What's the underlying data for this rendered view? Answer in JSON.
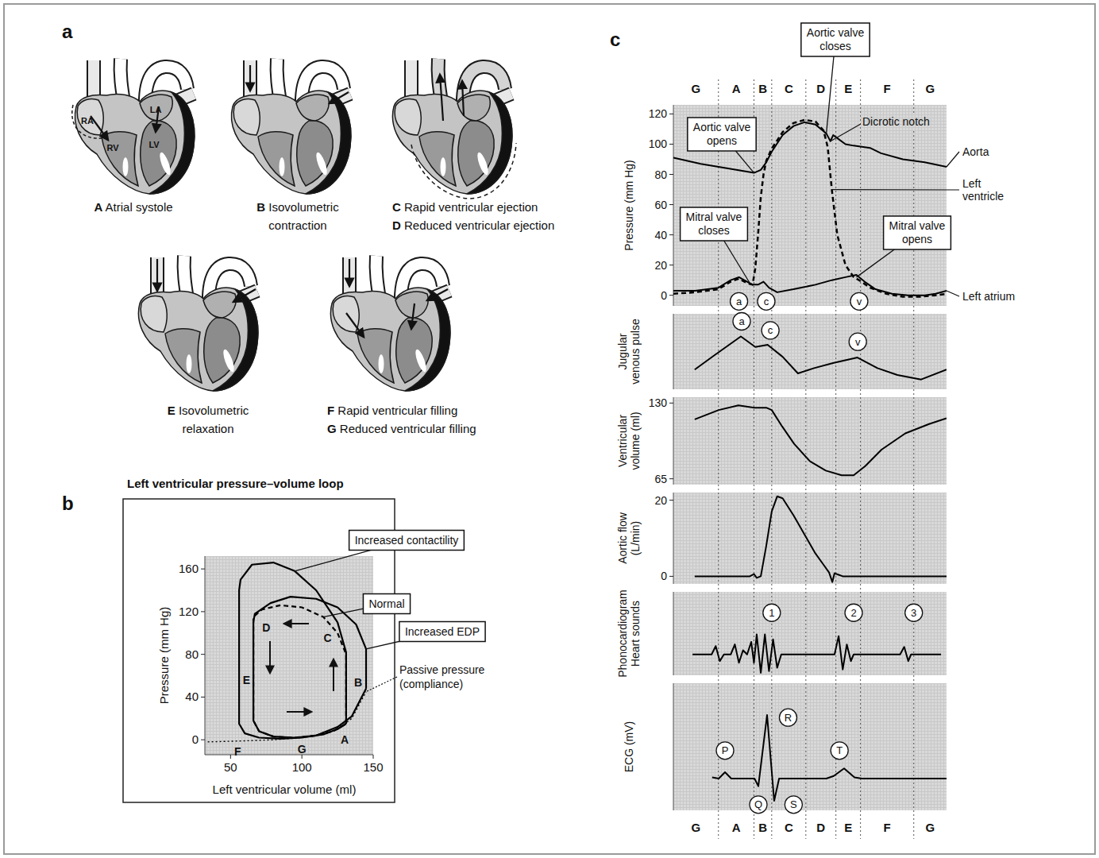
{
  "panel_labels": [
    "a",
    "b",
    "c"
  ],
  "panel_a": {
    "chamber_labels": [
      "RA",
      "LA",
      "RV",
      "LV"
    ],
    "hearts": [
      {
        "captions": [
          {
            "letter": "A",
            "text": "Atrial systole"
          }
        ]
      },
      {
        "captions": [
          {
            "letter": "B",
            "text": "Isovolumetric contraction"
          }
        ]
      },
      {
        "captions": [
          {
            "letter": "C",
            "text": "Rapid ventricular ejection"
          },
          {
            "letter": "D",
            "text": "Reduced ventricular ejection"
          }
        ]
      },
      {
        "captions": [
          {
            "letter": "E",
            "text": "Isovolumetric relaxation"
          }
        ]
      },
      {
        "captions": [
          {
            "letter": "F",
            "text": "Rapid ventricular filling"
          },
          {
            "letter": "G",
            "text": "Reduced ventricular filling"
          }
        ]
      }
    ]
  },
  "cycle_phases": {
    "labels": [
      "G",
      "A",
      "B",
      "C",
      "D",
      "E",
      "F",
      "G"
    ],
    "boundaries": [
      16.5,
      29.5,
      36,
      48.5,
      59.5,
      68.5,
      88
    ]
  },
  "chart_data": [
    {
      "type": "line",
      "title": "Left ventricular pressure–volume loop",
      "x_label": "Left ventricular volume (ml)",
      "y_label": "Pressure (mm Hg)",
      "xlim": [
        32,
        150
      ],
      "ylim": [
        -14,
        172
      ],
      "xticks": [
        50,
        100,
        150
      ],
      "yticks": [
        0,
        40,
        80,
        120,
        160
      ],
      "series": [
        {
          "name": "Normal",
          "color": "#000000",
          "line_style": "dashed",
          "x": [
            131,
            131,
            125,
            115,
            100,
            85,
            72,
            66,
            66,
            66,
            70,
            80,
            95,
            110,
            122,
            131
          ],
          "values": [
            15,
            80,
            100,
            115,
            124,
            126,
            122,
            115,
            60,
            18,
            8,
            3,
            2,
            4,
            8,
            15
          ]
        },
        {
          "name": "Increased contactility",
          "color": "#000000",
          "line_style": "solid",
          "x": [
            131,
            131,
            125,
            110,
            95,
            80,
            65,
            57,
            56,
            56,
            56,
            60,
            70,
            85,
            100,
            115,
            125,
            131
          ],
          "values": [
            15,
            82,
            110,
            140,
            158,
            166,
            164,
            150,
            140,
            60,
            15,
            6,
            2,
            1,
            2,
            5,
            10,
            15
          ]
        },
        {
          "name": "Increased EDP",
          "color": "#000000",
          "line_style": "solid",
          "x": [
            145,
            145,
            138,
            125,
            110,
            92,
            78,
            67,
            66,
            66,
            66,
            70,
            80,
            95,
            110,
            125,
            135,
            145
          ],
          "values": [
            48,
            85,
            108,
            124,
            132,
            134,
            128,
            118,
            110,
            60,
            18,
            8,
            3,
            2,
            4,
            12,
            22,
            48
          ]
        },
        {
          "name": "Passive pressure (compliance)",
          "color": "#000000",
          "line_style": "dotted",
          "x": [
            34,
            60,
            80,
            100,
            115,
            125,
            135,
            145
          ],
          "values": [
            -2,
            -1,
            0,
            2,
            5,
            10,
            20,
            45
          ]
        }
      ],
      "point_labels": [
        {
          "label": "A",
          "x": 130,
          "y": 0
        },
        {
          "label": "B",
          "x": 139.5,
          "y": 54
        },
        {
          "label": "C",
          "x": 118,
          "y": 95
        },
        {
          "label": "D",
          "x": 75,
          "y": 105
        },
        {
          "label": "E",
          "x": 61.2,
          "y": 56
        },
        {
          "label": "F",
          "x": 55,
          "y": -11
        },
        {
          "label": "G",
          "x": 100,
          "y": -9
        }
      ]
    },
    {
      "type": "line",
      "y_label": "Pressure (mm Hg)",
      "xlim": [
        0,
        100
      ],
      "ylim": [
        -7,
        126
      ],
      "yticks": [
        0,
        20,
        40,
        60,
        80,
        100,
        120
      ],
      "tick_labels": "y",
      "series": [
        {
          "name": "Aorta",
          "color": "#000000",
          "line_style": "solid",
          "x": [
            0,
            10,
            20,
            29.5,
            32,
            34,
            36,
            40,
            44,
            48,
            52,
            55,
            56,
            57.5,
            58.5,
            60,
            63,
            66,
            70,
            72,
            76,
            84,
            92,
            100
          ],
          "values": [
            91,
            87,
            84,
            81,
            83,
            88,
            95,
            106,
            112,
            114.5,
            113,
            108.5,
            107,
            102,
            106,
            104,
            100,
            99,
            98,
            97.5,
            94,
            90,
            88,
            85
          ]
        },
        {
          "name": "Left ventricle",
          "color": "#000000",
          "line_style": "dashed",
          "x": [
            0,
            8,
            16.5,
            21,
            24,
            27,
            29,
            30,
            31,
            32,
            33,
            34,
            36,
            40,
            44,
            48,
            52,
            55,
            56.5,
            58,
            60,
            63,
            66,
            68,
            72,
            78,
            84,
            90,
            96,
            100
          ],
          "values": [
            1,
            2,
            4,
            9,
            11,
            8,
            7,
            18,
            40,
            65,
            80,
            89,
            97,
            108,
            114,
            116,
            115,
            109,
            98,
            70,
            40,
            20,
            12,
            10,
            5,
            1,
            -1,
            -1,
            0,
            1
          ]
        },
        {
          "name": "Left atrium",
          "color": "#000000",
          "line_style": "solid",
          "x": [
            0,
            8,
            16.5,
            21,
            24,
            27,
            29,
            31,
            33,
            35,
            38,
            44,
            52,
            58,
            63,
            67,
            70,
            74,
            80,
            86,
            92,
            96,
            100
          ],
          "values": [
            3,
            3,
            5,
            10,
            12,
            9,
            7,
            7,
            9,
            5,
            2,
            4,
            7,
            10,
            12,
            13.5,
            9,
            4,
            1,
            0,
            0,
            1,
            3
          ]
        }
      ],
      "annotations": [
        {
          "text": "Aortic valve opens",
          "x": 29.5,
          "y": 81
        },
        {
          "text": "Mitral valve closes",
          "x": 28,
          "y": 8
        },
        {
          "text": "Aortic valve closes",
          "x": 56,
          "y": 107
        },
        {
          "text": "Dicrotic notch",
          "x": 57.5,
          "y": 102
        },
        {
          "text": "Mitral valve opens",
          "x": 67,
          "y": 12
        }
      ],
      "wave_labels": [
        {
          "label": "a",
          "x": 24,
          "y": -4
        },
        {
          "label": "c",
          "x": 34,
          "y": -4
        },
        {
          "label": "v",
          "x": 68,
          "y": -4
        }
      ]
    },
    {
      "type": "line",
      "y_label": "Jugular venous pulse",
      "xlim": [
        0,
        100
      ],
      "ylim": [
        0,
        10
      ],
      "tick_labels": false,
      "series": [
        {
          "color": "#000000",
          "line_style": "solid",
          "x": [
            7.8,
            15,
            24.7,
            30,
            34.5,
            40,
            45.6,
            51.5,
            58.7,
            67.4,
            74.7,
            82,
            90.7,
            100
          ],
          "values": [
            2.6,
            4.5,
            7,
            5.6,
            5.9,
            4.3,
            2.1,
            2.8,
            3.5,
            4.2,
            2.8,
            1.9,
            1.3,
            2.6
          ]
        }
      ],
      "wave_labels": [
        {
          "label": "a",
          "x": 25,
          "y": 9
        },
        {
          "label": "c",
          "x": 35.5,
          "y": 7.8
        },
        {
          "label": "v",
          "x": 67.5,
          "y": 6.3
        }
      ]
    },
    {
      "type": "line",
      "y_label": "Ventricular volume (ml)",
      "xlim": [
        0,
        100
      ],
      "ylim": [
        60,
        135
      ],
      "yticks": [
        65,
        130
      ],
      "tick_labels": "y",
      "series": [
        {
          "color": "#000000",
          "line_style": "solid",
          "x": [
            7.8,
            16.6,
            23.8,
            29.7,
            34,
            36,
            39.8,
            44.2,
            50,
            55.8,
            61.6,
            66,
            70.3,
            76.2,
            84.9,
            93.6,
            100
          ],
          "values": [
            116,
            124,
            128,
            126,
            126,
            124,
            110,
            95,
            80,
            72,
            68,
            68,
            76,
            90,
            104,
            112,
            117
          ]
        }
      ]
    },
    {
      "type": "line",
      "y_label": "Aortic flow (L/min)",
      "xlim": [
        0,
        100
      ],
      "ylim": [
        -2,
        22
      ],
      "yticks": [
        0,
        20
      ],
      "tick_labels": "y",
      "series": [
        {
          "color": "#000000",
          "line_style": "solid",
          "x": [
            7.8,
            28,
            29.5,
            30.5,
            32,
            34,
            36,
            38,
            40,
            44,
            48,
            52,
            55,
            57,
            58.2,
            59,
            60.5,
            62,
            100
          ],
          "values": [
            0,
            0,
            0.6,
            -0.4,
            0,
            8,
            17,
            21,
            20.5,
            16,
            11,
            6,
            3,
            1,
            -1.5,
            0.8,
            0.4,
            0,
            0
          ]
        }
      ]
    },
    {
      "type": "line",
      "y_label": "Phonocardiogram Heart sounds",
      "xlim": [
        0,
        100
      ],
      "ylim": [
        -2.5,
        7.5
      ],
      "tick_labels": false,
      "series": [
        {
          "color": "#000000",
          "line_style": "solid",
          "x": [
            7,
            14,
            15.5,
            17,
            18.5,
            21,
            22.5,
            24,
            25.5,
            27,
            28.5,
            29.5,
            30.5,
            32,
            33.5,
            35,
            36.5,
            38,
            39.5,
            59,
            60.5,
            62,
            63.5,
            65,
            66,
            83,
            84.5,
            86,
            87,
            98
          ],
          "values": [
            0,
            0,
            1,
            -0.8,
            0,
            0,
            1.2,
            -1,
            0.5,
            0,
            1.5,
            -1,
            2.4,
            -2.2,
            2.4,
            -2,
            1.8,
            -1.6,
            0,
            0,
            2.2,
            -1.8,
            1.2,
            -0.8,
            0,
            0,
            0.9,
            -0.8,
            0,
            0
          ]
        }
      ],
      "wave_labels": [
        {
          "label": "1",
          "x": 36,
          "y": 5
        },
        {
          "label": "2",
          "x": 66,
          "y": 5
        },
        {
          "label": "3",
          "x": 88,
          "y": 5
        }
      ]
    },
    {
      "type": "line",
      "y_label": "ECG (mV)",
      "xlim": [
        0,
        100
      ],
      "ylim": [
        -0.5,
        1.5
      ],
      "tick_labels": false,
      "series": [
        {
          "color": "#000000",
          "line_style": "solid",
          "x": [
            14.2,
            16.6,
            18.9,
            21.2,
            29.7,
            31.1,
            34.3,
            36.9,
            38.7,
            56,
            58.7,
            62.5,
            66.3,
            69,
            100
          ],
          "values": [
            0.02,
            0,
            0.1,
            0,
            0,
            -0.12,
            1,
            -0.35,
            0,
            0,
            0.04,
            0.16,
            0.02,
            0,
            0
          ]
        }
      ],
      "wave_labels": [
        {
          "label": "P",
          "x": 18.9,
          "y": 0.44
        },
        {
          "label": "Q",
          "x": 31.1,
          "y": -0.41
        },
        {
          "label": "R",
          "x": 42,
          "y": 0.96
        },
        {
          "label": "S",
          "x": 44,
          "y": -0.41
        },
        {
          "label": "T",
          "x": 60.8,
          "y": 0.44
        }
      ]
    }
  ]
}
